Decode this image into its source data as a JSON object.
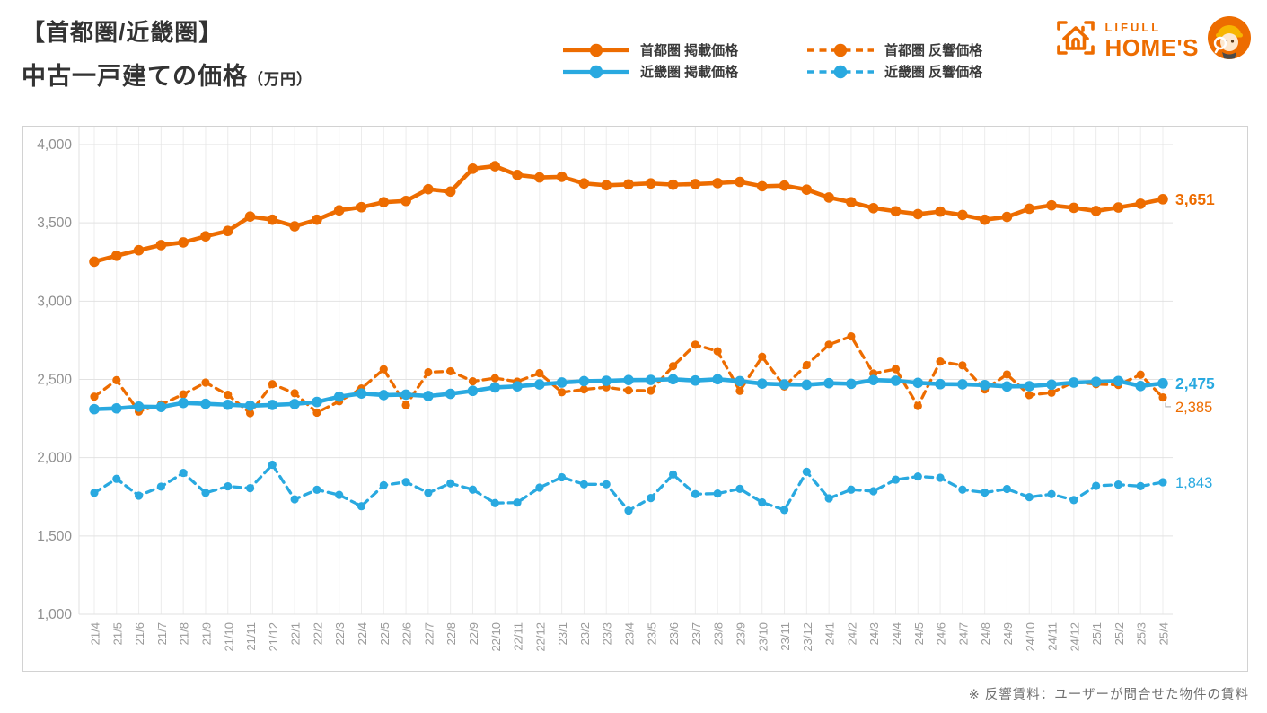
{
  "header": {
    "title_line1": "【首都圏/近畿圏】",
    "title_line2": "中古一戸建ての価格",
    "title_unit": "（万円）"
  },
  "logo": {
    "brand_top": "LIFULL",
    "brand_bottom": "HOME'S"
  },
  "footer": {
    "note": "※ 反響賃料：ユーザーが問合せた物件の賃料"
  },
  "colors": {
    "orange": "#ed6c00",
    "blue": "#29a9e0",
    "grid": "#ececec",
    "grid_h": "#e2e2e2",
    "border": "#d2d2d2",
    "ytick": "#8f8f8f",
    "xtick": "#9a9a9a"
  },
  "chart_data": {
    "type": "line",
    "title": "中古一戸建ての価格（万円） 首都圏/近畿圏",
    "xlabel": "",
    "ylabel": "",
    "ylim": [
      1000,
      4000
    ],
    "yticks": [
      1000,
      1500,
      2000,
      2500,
      3000,
      3500,
      4000
    ],
    "grid": true,
    "legend_position": "top",
    "categories": [
      "21/4",
      "21/5",
      "21/6",
      "21/7",
      "21/8",
      "21/9",
      "21/10",
      "21/11",
      "21/12",
      "22/1",
      "22/2",
      "22/3",
      "22/4",
      "22/5",
      "22/6",
      "22/7",
      "22/8",
      "22/9",
      "22/10",
      "22/11",
      "22/12",
      "23/1",
      "23/2",
      "23/3",
      "23/4",
      "23/5",
      "23/6",
      "23/7",
      "23/8",
      "23/9",
      "23/10",
      "23/11",
      "23/12",
      "24/1",
      "24/2",
      "24/3",
      "24/4",
      "24/5",
      "24/6",
      "24/7",
      "24/8",
      "24/9",
      "24/10",
      "24/11",
      "24/12",
      "25/1",
      "25/2",
      "25/3",
      "25/4"
    ],
    "series": [
      {
        "name": "首都圏 掲載価格",
        "color": "#ed6c00",
        "dashed": false,
        "end_label": "3,651",
        "values": [
          3252,
          3290,
          3325,
          3358,
          3375,
          3414,
          3448,
          3540,
          3520,
          3478,
          3520,
          3580,
          3600,
          3632,
          3640,
          3715,
          3700,
          3846,
          3862,
          3806,
          3790,
          3794,
          3752,
          3740,
          3746,
          3752,
          3744,
          3748,
          3754,
          3762,
          3734,
          3738,
          3712,
          3662,
          3632,
          3594,
          3574,
          3556,
          3572,
          3550,
          3520,
          3538,
          3590,
          3612,
          3596,
          3576,
          3598,
          3622,
          3651
        ]
      },
      {
        "name": "近畿圏 掲載価格",
        "color": "#29a9e0",
        "dashed": false,
        "end_label": "2,475",
        "values": [
          2310,
          2315,
          2326,
          2324,
          2350,
          2344,
          2338,
          2332,
          2337,
          2343,
          2356,
          2390,
          2410,
          2400,
          2403,
          2394,
          2408,
          2427,
          2449,
          2456,
          2468,
          2480,
          2489,
          2491,
          2496,
          2497,
          2501,
          2493,
          2501,
          2489,
          2473,
          2468,
          2466,
          2476,
          2472,
          2496,
          2492,
          2478,
          2470,
          2469,
          2464,
          2455,
          2457,
          2467,
          2480,
          2485,
          2490,
          2458,
          2475
        ]
      },
      {
        "name": "首都圏 反響価格",
        "color": "#ed6c00",
        "dashed": true,
        "end_label": "2,385",
        "values": [
          2390,
          2495,
          2295,
          2340,
          2405,
          2480,
          2402,
          2285,
          2470,
          2412,
          2288,
          2360,
          2442,
          2565,
          2335,
          2546,
          2552,
          2488,
          2508,
          2486,
          2540,
          2418,
          2436,
          2450,
          2430,
          2428,
          2585,
          2722,
          2680,
          2427,
          2645,
          2455,
          2592,
          2722,
          2775,
          2538,
          2566,
          2330,
          2614,
          2590,
          2436,
          2532,
          2400,
          2415,
          2484,
          2470,
          2465,
          2530,
          2385
        ]
      },
      {
        "name": "近畿圏 反響価格",
        "color": "#29a9e0",
        "dashed": true,
        "end_label": "1,843",
        "values": [
          1775,
          1865,
          1757,
          1815,
          1903,
          1775,
          1817,
          1805,
          1955,
          1734,
          1795,
          1762,
          1690,
          1824,
          1845,
          1775,
          1836,
          1796,
          1710,
          1713,
          1809,
          1875,
          1830,
          1830,
          1662,
          1742,
          1893,
          1767,
          1771,
          1801,
          1714,
          1666,
          1910,
          1740,
          1796,
          1786,
          1860,
          1880,
          1872,
          1796,
          1777,
          1800,
          1748,
          1767,
          1729,
          1820,
          1828,
          1818,
          1843
        ]
      }
    ]
  }
}
